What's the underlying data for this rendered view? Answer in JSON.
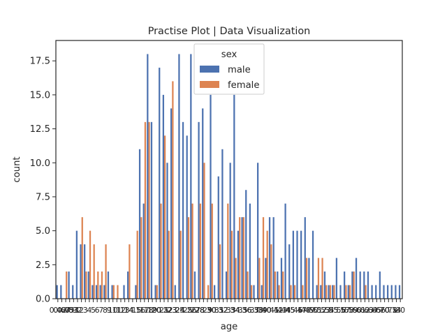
{
  "chart_data": {
    "type": "bar",
    "title": "Practise Plot | Data Visualization",
    "xlabel": "age",
    "ylabel": "count",
    "ylim": [
      0,
      19
    ],
    "yticks": [
      0.0,
      2.5,
      5.0,
      7.5,
      10.0,
      12.5,
      15.0,
      17.5
    ],
    "ytick_labels": [
      "0.0",
      "2.5",
      "5.0",
      "7.5",
      "10.0",
      "12.5",
      "15.0",
      "17.5"
    ],
    "grid": false,
    "legend": {
      "title": "sex",
      "placement": "top-center"
    },
    "categories": [
      "0.42",
      "0.67",
      "0.75",
      "0.83",
      "0.92",
      "1",
      "2",
      "3",
      "4",
      "5",
      "6",
      "7",
      "8",
      "9",
      "10",
      "11",
      "12",
      "13",
      "14",
      "14.5",
      "15",
      "16",
      "17",
      "18",
      "19",
      "20",
      "20.5",
      "21",
      "22",
      "23",
      "23.5",
      "24",
      "24.5",
      "25",
      "26",
      "27",
      "28",
      "28.5",
      "29",
      "30",
      "30.5",
      "31",
      "32",
      "32.5",
      "33",
      "34",
      "34.5",
      "35",
      "36",
      "36.5",
      "37",
      "38",
      "39",
      "40",
      "40.5",
      "41",
      "42",
      "43",
      "44",
      "45",
      "45.5",
      "46",
      "47",
      "48",
      "49",
      "50",
      "51",
      "52",
      "53",
      "54",
      "55",
      "55.5",
      "56",
      "57",
      "58",
      "59",
      "60",
      "61",
      "62",
      "63",
      "64",
      "65",
      "66",
      "70",
      "70.5",
      "71",
      "74",
      "80"
    ],
    "series": [
      {
        "name": "male",
        "color": "#4c72b0",
        "values": [
          1,
          1,
          0,
          2,
          1,
          5,
          4,
          4,
          2,
          1,
          1,
          1,
          1,
          2,
          1,
          0,
          0,
          1,
          2,
          0,
          1,
          11,
          7,
          18,
          13,
          1,
          17,
          15,
          10,
          14,
          1,
          18,
          13,
          12,
          18,
          2,
          13,
          14,
          0,
          15,
          1,
          9,
          11,
          2,
          10,
          15,
          5,
          6,
          8,
          7,
          1,
          10,
          1,
          3,
          6,
          6,
          2,
          3,
          7,
          4,
          5,
          5,
          5,
          6,
          3,
          5,
          1,
          1,
          2,
          1,
          1,
          3,
          1,
          2,
          1,
          2,
          3,
          2,
          2,
          2,
          1,
          1,
          2,
          1,
          1,
          1,
          1,
          1
        ]
      },
      {
        "name": "female",
        "color": "#dd8452",
        "values": [
          0,
          0,
          2,
          0,
          0,
          0,
          6,
          2,
          5,
          4,
          2,
          2,
          4,
          0,
          1,
          1,
          0,
          0,
          4,
          0,
          5,
          6,
          13,
          13,
          0,
          1,
          7,
          12,
          5,
          16,
          0,
          5,
          0,
          6,
          7,
          0,
          7,
          10,
          1,
          7,
          0,
          4,
          0,
          7,
          5,
          3,
          6,
          6,
          2,
          1,
          0,
          3,
          6,
          5,
          4,
          2,
          1,
          2,
          0,
          1,
          1,
          0,
          1,
          3,
          0,
          0,
          3,
          3,
          1,
          1,
          1,
          0,
          0,
          1,
          1,
          2,
          0,
          0,
          1,
          0,
          0,
          0,
          0,
          0,
          0,
          0,
          0,
          0
        ]
      }
    ]
  }
}
